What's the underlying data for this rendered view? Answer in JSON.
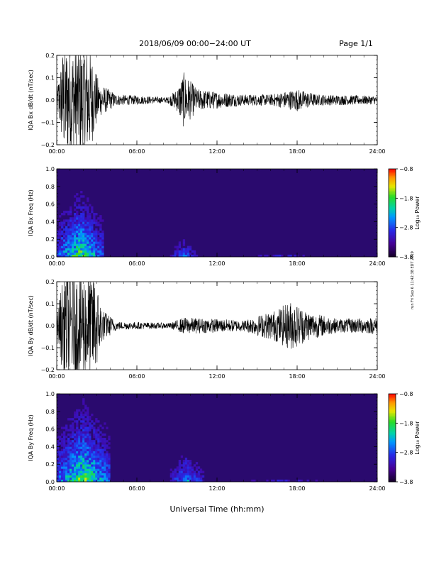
{
  "header": {
    "title": "2018/06/09   00:00−24:00 UT",
    "page": "Page 1/1"
  },
  "xlabel": "Universal Time (hh:mm)",
  "side_note": "run Fri Sep 6 11:42:38 EDT 2019",
  "colors": {
    "trace": "#000000",
    "spec_bg": "#2a0a6e"
  },
  "chart_data": [
    {
      "type": "line",
      "ylabel": "IQA Bx dB/dt (nT/sec)",
      "ylim": [
        -0.2,
        0.2
      ],
      "yticks": [
        "0.2",
        "0.1",
        "0.0",
        "−0.1",
        "−0.2"
      ],
      "xticks": [
        "00:00",
        "06:00",
        "12:00",
        "18:00",
        "24:00"
      ],
      "xlim_hours": [
        0,
        24
      ],
      "envelope": [
        {
          "hour": 0.0,
          "amp": 0.03
        },
        {
          "hour": 0.5,
          "amp": 0.2
        },
        {
          "hour": 2.4,
          "amp": 0.2
        },
        {
          "hour": 3.2,
          "amp": 0.06
        },
        {
          "hour": 4.5,
          "amp": 0.02
        },
        {
          "hour": 8.3,
          "amp": 0.01
        },
        {
          "hour": 9.0,
          "amp": 0.04
        },
        {
          "hour": 9.5,
          "amp": 0.1
        },
        {
          "hour": 10.5,
          "amp": 0.04
        },
        {
          "hour": 12.0,
          "amp": 0.03
        },
        {
          "hour": 14.0,
          "amp": 0.02
        },
        {
          "hour": 16.0,
          "amp": 0.02
        },
        {
          "hour": 18.0,
          "amp": 0.04
        },
        {
          "hour": 19.5,
          "amp": 0.02
        },
        {
          "hour": 24.0,
          "amp": 0.015
        }
      ]
    },
    {
      "type": "heatmap",
      "ylabel": "IQA Bx Freq (Hz)",
      "ylim": [
        0.0,
        1.0
      ],
      "yticks": [
        "1.0",
        "0.8",
        "0.6",
        "0.4",
        "0.2",
        "0.0"
      ],
      "xticks": [
        "00:00",
        "06:00",
        "12:00",
        "18:00",
        "24:00"
      ],
      "xlim_hours": [
        0,
        24
      ],
      "colorbar": {
        "label": "Log₁₀ Power",
        "range": [
          -3.8,
          -0.8
        ],
        "ticks": [
          "−0.8",
          "−1.8",
          "−2.8",
          "−3.8"
        ]
      },
      "bursts": [
        {
          "hour_start": 0.0,
          "hour_end": 3.5,
          "peak_freq": 0.5,
          "power": -1.6
        },
        {
          "hour_start": 8.5,
          "hour_end": 10.5,
          "peak_freq": 0.2,
          "power": -2.5
        },
        {
          "hour_start": 14.0,
          "hour_end": 20.0,
          "peak_freq": 0.05,
          "power": -2.8
        }
      ]
    },
    {
      "type": "line",
      "ylabel": "IQA By dB/dt (nT/sec)",
      "ylim": [
        -0.2,
        0.2
      ],
      "yticks": [
        "0.2",
        "0.1",
        "0.0",
        "−0.1",
        "−0.2"
      ],
      "xticks": [
        "00:00",
        "06:00",
        "12:00",
        "18:00",
        "24:00"
      ],
      "xlim_hours": [
        0,
        24
      ],
      "envelope": [
        {
          "hour": 0.0,
          "amp": 0.03
        },
        {
          "hour": 0.5,
          "amp": 0.2
        },
        {
          "hour": 2.8,
          "amp": 0.2
        },
        {
          "hour": 3.4,
          "amp": 0.06
        },
        {
          "hour": 4.5,
          "amp": 0.015
        },
        {
          "hour": 8.5,
          "amp": 0.01
        },
        {
          "hour": 9.5,
          "amp": 0.03
        },
        {
          "hour": 12.0,
          "amp": 0.025
        },
        {
          "hour": 14.0,
          "amp": 0.02
        },
        {
          "hour": 16.5,
          "amp": 0.06
        },
        {
          "hour": 17.5,
          "amp": 0.09
        },
        {
          "hour": 19.0,
          "amp": 0.05
        },
        {
          "hour": 21.0,
          "amp": 0.025
        },
        {
          "hour": 24.0,
          "amp": 0.03
        }
      ]
    },
    {
      "type": "heatmap",
      "ylabel": "IQA By Freq (Hz)",
      "ylim": [
        0.0,
        1.0
      ],
      "yticks": [
        "1.0",
        "0.8",
        "0.6",
        "0.4",
        "0.2",
        "0.0"
      ],
      "xticks": [
        "00:00",
        "06:00",
        "12:00",
        "18:00",
        "24:00"
      ],
      "xlim_hours": [
        0,
        24
      ],
      "colorbar": {
        "label": "Log₁₀ Power",
        "range": [
          -3.8,
          -0.8
        ],
        "ticks": [
          "−0.8",
          "−1.8",
          "−2.8",
          "−3.8"
        ]
      },
      "bursts": [
        {
          "hour_start": 0.0,
          "hour_end": 4.0,
          "peak_freq": 0.6,
          "power": -1.5
        },
        {
          "hour_start": 8.5,
          "hour_end": 11.0,
          "peak_freq": 0.3,
          "power": -2.3
        },
        {
          "hour_start": 14.0,
          "hour_end": 20.0,
          "peak_freq": 0.05,
          "power": -2.8
        }
      ]
    }
  ]
}
